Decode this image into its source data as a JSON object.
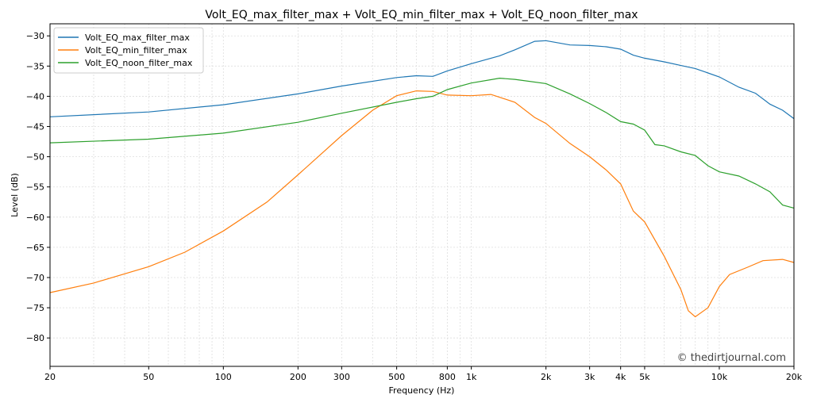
{
  "chart_data": {
    "type": "line",
    "title": "Volt_EQ_max_filter_max + Volt_EQ_min_filter_max + Volt_EQ_noon_filter_max",
    "xlabel": "Frequency (Hz)",
    "ylabel": "Level (dB)",
    "xscale": "log",
    "xlim": [
      20,
      20000
    ],
    "ylim": [
      -84.7,
      -28
    ],
    "grid": true,
    "legend": "top-left",
    "watermark": "© thedirtjournal.com",
    "xticks": [
      20,
      50,
      100,
      200,
      300,
      500,
      800,
      1000,
      2000,
      3000,
      4000,
      5000,
      10000,
      20000
    ],
    "xtick_labels": [
      "20",
      "50",
      "100",
      "200",
      "300",
      "500",
      "800",
      "1k",
      "2k",
      "3k",
      "4k",
      "5k",
      "10k",
      "20k"
    ],
    "yticks": [
      -30,
      -35,
      -40,
      -45,
      -50,
      -55,
      -60,
      -65,
      -70,
      -75,
      -80
    ],
    "ytick_labels": [
      "−30",
      "−35",
      "−40",
      "−45",
      "−50",
      "−55",
      "−60",
      "−65",
      "−70",
      "−75",
      "−80"
    ],
    "series": [
      {
        "name": "Volt_EQ_max_filter_max",
        "color": "#1f77b4",
        "x": [
          20,
          50,
          100,
          200,
          300,
          500,
          600,
          700,
          800,
          1000,
          1300,
          1500,
          1800,
          2000,
          2500,
          3000,
          3500,
          4000,
          4500,
          5000,
          6000,
          7000,
          8000,
          10000,
          12000,
          14000,
          16000,
          18000,
          20000
        ],
        "y": [
          -43.4,
          -42.6,
          -41.4,
          -39.6,
          -38.3,
          -36.9,
          -36.6,
          -36.7,
          -35.8,
          -34.6,
          -33.3,
          -32.3,
          -30.9,
          -30.8,
          -31.5,
          -31.6,
          -31.8,
          -32.2,
          -33.2,
          -33.7,
          -34.3,
          -34.9,
          -35.4,
          -36.8,
          -38.5,
          -39.5,
          -41.3,
          -42.3,
          -43.7
        ]
      },
      {
        "name": "Volt_EQ_min_filter_max",
        "color": "#ff7f0e",
        "x": [
          20,
          30,
          50,
          70,
          100,
          150,
          200,
          300,
          400,
          500,
          600,
          700,
          800,
          1000,
          1200,
          1500,
          1800,
          2000,
          2500,
          3000,
          3500,
          4000,
          4500,
          5000,
          6000,
          7000,
          7500,
          8000,
          9000,
          10000,
          11000,
          13000,
          15000,
          18000,
          20000
        ],
        "y": [
          -72.5,
          -70.9,
          -68.2,
          -65.8,
          -62.3,
          -57.5,
          -53.0,
          -46.5,
          -42.3,
          -39.9,
          -39.1,
          -39.2,
          -39.8,
          -39.9,
          -39.7,
          -41.0,
          -43.5,
          -44.5,
          -47.8,
          -50.0,
          -52.2,
          -54.5,
          -59.0,
          -60.8,
          -66.5,
          -72.0,
          -75.5,
          -76.5,
          -75.0,
          -71.5,
          -69.5,
          -68.3,
          -67.2,
          -67.0,
          -67.5
        ]
      },
      {
        "name": "Volt_EQ_noon_filter_max",
        "color": "#2ca02c",
        "x": [
          20,
          50,
          100,
          200,
          300,
          500,
          600,
          700,
          800,
          1000,
          1300,
          1500,
          2000,
          2500,
          3000,
          3500,
          4000,
          4500,
          5000,
          5500,
          6000,
          7000,
          8000,
          9000,
          10000,
          12000,
          14000,
          16000,
          18000,
          20000
        ],
        "y": [
          -47.7,
          -47.1,
          -46.1,
          -44.3,
          -42.8,
          -41.0,
          -40.4,
          -40.0,
          -38.9,
          -37.8,
          -37.0,
          -37.2,
          -37.9,
          -39.6,
          -41.2,
          -42.7,
          -44.2,
          -44.6,
          -45.6,
          -48.0,
          -48.2,
          -49.2,
          -49.8,
          -51.5,
          -52.5,
          -53.2,
          -54.5,
          -55.8,
          -58.0,
          -58.5
        ]
      }
    ]
  }
}
